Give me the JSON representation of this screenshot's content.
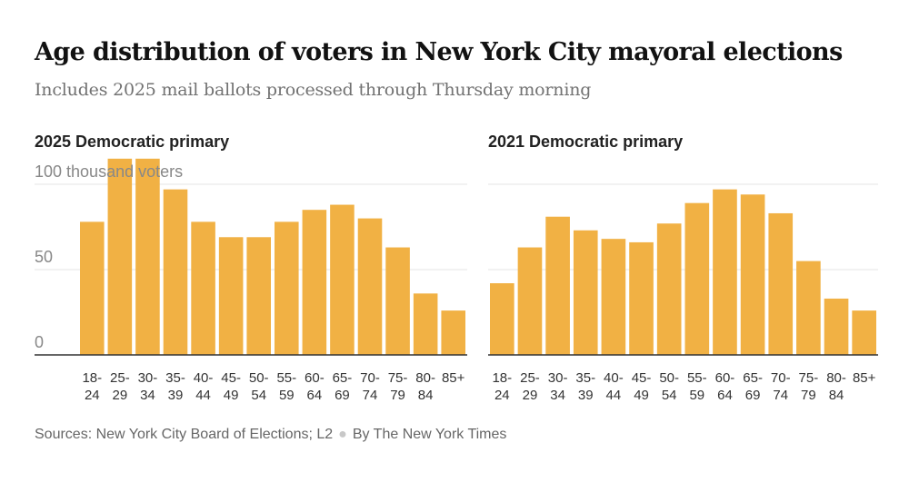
{
  "title": "Age distribution of voters in New York City mayoral elections",
  "subtitle": "Includes 2025 mail ballots processed through Thursday morning",
  "colors": {
    "bar": "#f1b144",
    "grid": "#e4e4e4",
    "axis": "#333333",
    "text": "#333333",
    "muted": "#888888"
  },
  "footer": {
    "sources": "Sources: New York City Board of Elections; L2",
    "credit": "By The New York Times"
  },
  "chart_data": [
    {
      "type": "bar",
      "title": "2025 Democratic primary",
      "ylabel": "thousand voters",
      "ylim": [
        0,
        100
      ],
      "yticks": [
        {
          "value": 100,
          "label": "100 thousand voters"
        },
        {
          "value": 50,
          "label": "50"
        },
        {
          "value": 0,
          "label": "0"
        }
      ],
      "categories": [
        "18-\n24",
        "25-\n29",
        "30-\n34",
        "35-\n39",
        "40-\n44",
        "45-\n49",
        "50-\n54",
        "55-\n59",
        "60-\n64",
        "65-\n69",
        "70-\n74",
        "75-\n79",
        "80-\n84",
        "85+"
      ],
      "values": [
        78,
        115,
        115,
        97,
        78,
        69,
        69,
        78,
        85,
        88,
        80,
        63,
        36,
        26
      ]
    },
    {
      "type": "bar",
      "title": "2021 Democratic primary",
      "ylim": [
        0,
        100
      ],
      "yticks": [
        {
          "value": 100,
          "label": ""
        },
        {
          "value": 50,
          "label": ""
        },
        {
          "value": 0,
          "label": ""
        }
      ],
      "categories": [
        "18-\n24",
        "25-\n29",
        "30-\n34",
        "35-\n39",
        "40-\n44",
        "45-\n49",
        "50-\n54",
        "55-\n59",
        "60-\n64",
        "65-\n69",
        "70-\n74",
        "75-\n79",
        "80-\n84",
        "85+"
      ],
      "values": [
        42,
        63,
        81,
        73,
        68,
        66,
        77,
        89,
        97,
        94,
        83,
        55,
        33,
        26
      ]
    }
  ]
}
